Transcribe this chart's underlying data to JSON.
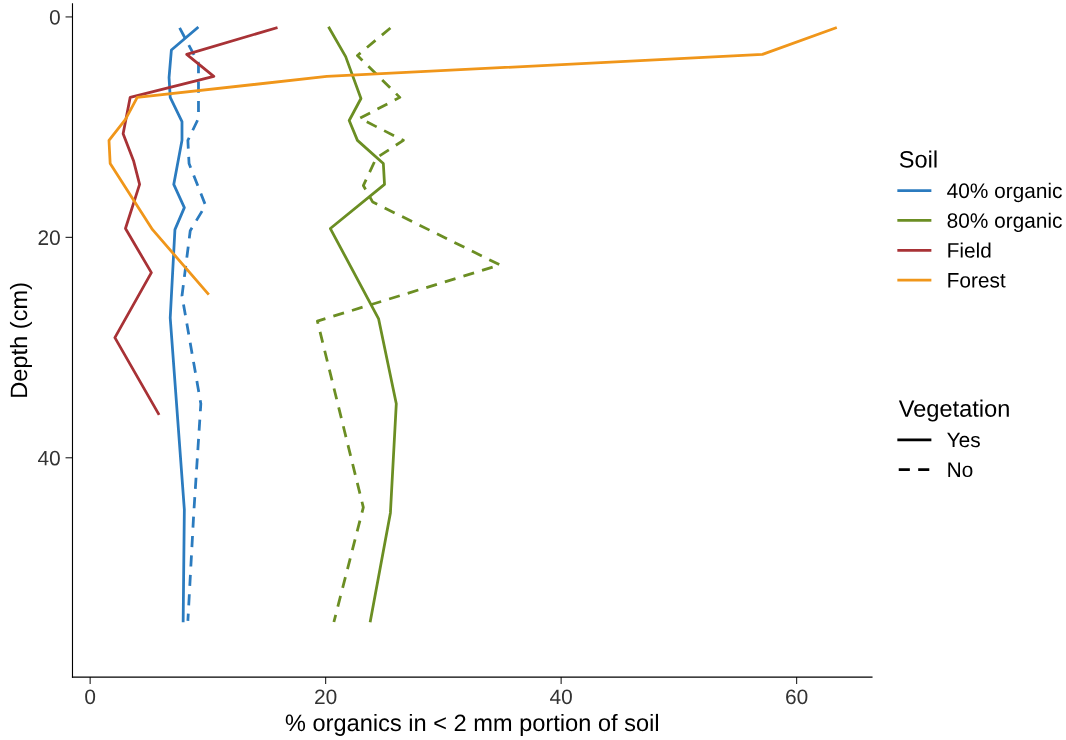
{
  "chart_data": {
    "type": "line",
    "xlabel": "% organics in < 2 mm portion of soil",
    "ylabel": "Depth (cm)",
    "xlim": [
      -1.5,
      66.4
    ],
    "ylim": [
      59.9,
      -1.2
    ],
    "xticks": [
      0,
      20,
      40,
      60
    ],
    "yticks": [
      0,
      20,
      40
    ],
    "grid": false,
    "legend": "right",
    "legend_title": "Soil",
    "annotations": [
      "Vegetation",
      "Yes",
      "No"
    ],
    "series": [
      {
        "name": "40% organic",
        "color": "#2b7bbf",
        "line_style": "solid",
        "x": [
          9.1,
          6.9,
          6.7,
          6.8,
          7.8,
          7.8,
          7.1,
          8.0,
          7.2,
          6.8,
          8.0,
          7.9
        ],
        "values": [
          1,
          3,
          5.5,
          7.3,
          9.5,
          11.2,
          15.2,
          17.3,
          19.3,
          27.3,
          44.7,
          54.8
        ]
      },
      {
        "color": "#2b7bbf",
        "line_style": "dashed",
        "x": [
          7.6,
          9.2,
          9.2,
          9.2,
          8.3,
          8.4,
          9.8,
          8.5,
          7.8,
          9.4,
          8.8,
          8.3
        ],
        "values": [
          1,
          4.2,
          7.1,
          9.2,
          11.2,
          13.3,
          17.1,
          19.4,
          25.3,
          35.1,
          45,
          54.8
        ]
      },
      {
        "name": "80% organic",
        "color": "#6b8e23",
        "line_style": "solid",
        "x": [
          20.3,
          21.7,
          23.0,
          22.0,
          22.7,
          24.9,
          25.0,
          20.4,
          24.5,
          26.0,
          25.5,
          23.8
        ],
        "values": [
          1,
          3.6,
          7.4,
          9.4,
          11.2,
          13.3,
          15.2,
          19.2,
          27.4,
          35.1,
          45,
          54.8
        ]
      },
      {
        "color": "#6b8e23",
        "line_style": "dashed",
        "x": [
          25.5,
          22.7,
          26.3,
          22.9,
          26.6,
          24.3,
          23.2,
          24.0,
          34.8,
          19.3,
          23.2,
          20.7
        ],
        "values": [
          1,
          3.5,
          7.3,
          9.2,
          11.2,
          12.8,
          15.3,
          16.8,
          22.5,
          27.6,
          44.5,
          54.9
        ]
      },
      {
        "name": "Field",
        "color": "#a83236",
        "line_style": "solid",
        "x": [
          15.8,
          8.2,
          10.5,
          3.4,
          2.8,
          3.7,
          4.2,
          3.0,
          5.2,
          2.1,
          5.8
        ],
        "values": [
          1,
          3.4,
          5.4,
          7.3,
          10.6,
          13.1,
          15.2,
          19.2,
          23.2,
          29.1,
          36
        ]
      },
      {
        "name": "Forest",
        "color": "#f0961a",
        "line_style": "solid",
        "x": [
          63.3,
          57.1,
          20.1,
          4.0,
          3.0,
          1.6,
          1.7,
          5.3,
          10.0
        ],
        "values": [
          1,
          3.4,
          5.4,
          7.3,
          9.3,
          11.2,
          13.3,
          19.3,
          25.1
        ]
      }
    ]
  }
}
